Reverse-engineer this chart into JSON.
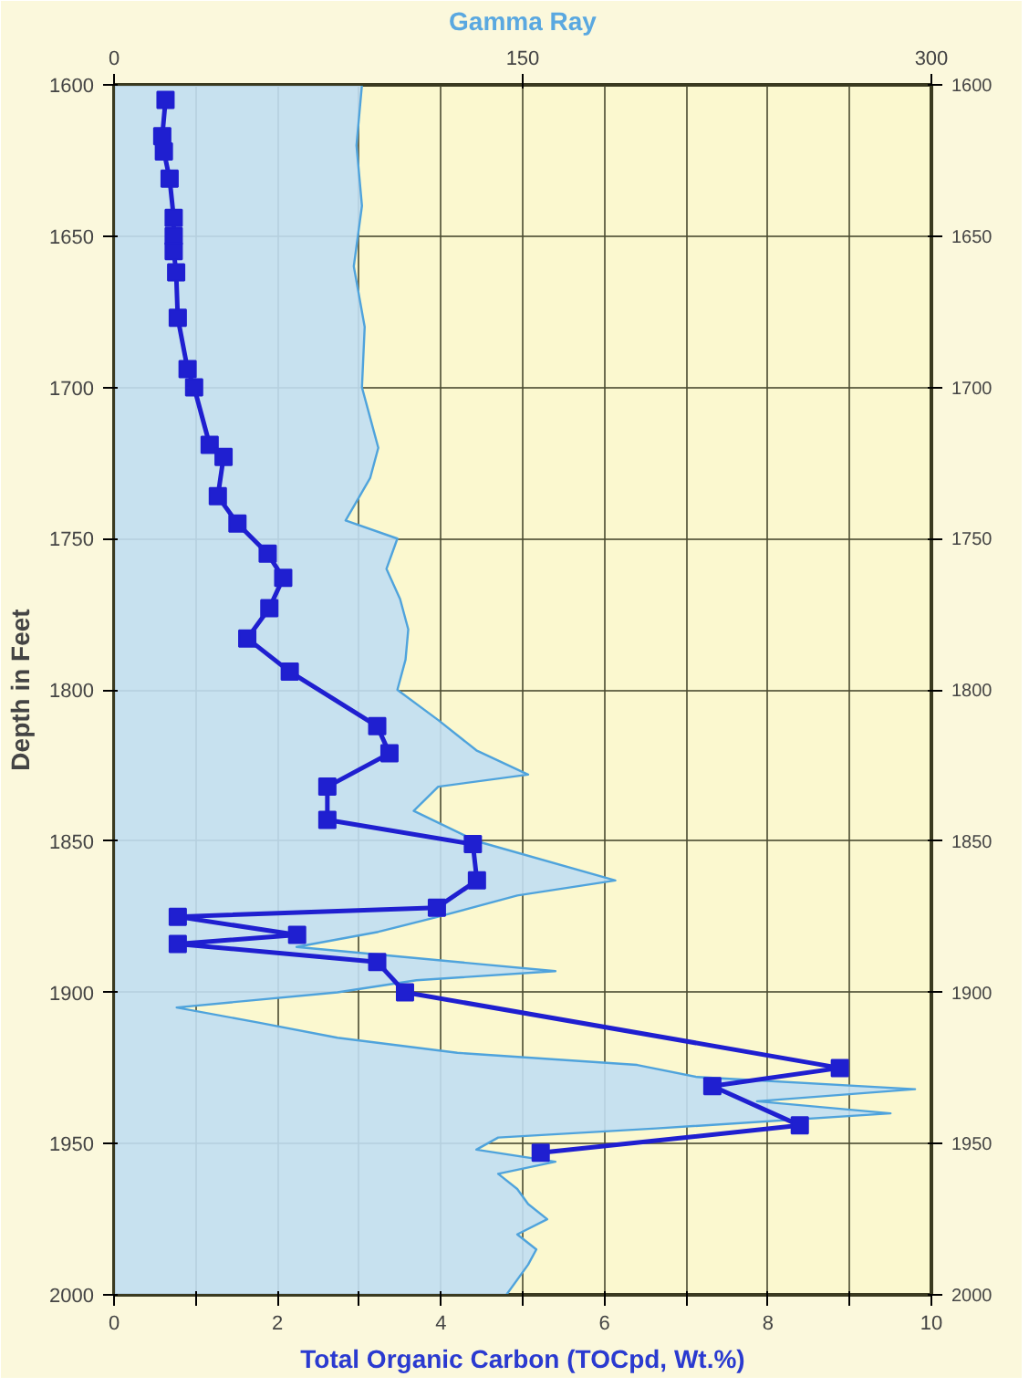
{
  "chart_data": {
    "type": "line",
    "xlabel": "Total Organic Carbon (TOCpd, Wt.%)",
    "x2label": "Gamma Ray",
    "ylabel": "Depth in Feet",
    "xlim": [
      0,
      10
    ],
    "xticks": [
      0,
      {
        "value": 1,
        "label": null
      },
      2,
      {
        "value": 3,
        "label": null
      },
      4,
      {
        "value": 5,
        "label": null
      },
      6,
      {
        "value": 7,
        "label": null
      },
      8,
      {
        "value": 9,
        "label": null
      },
      10
    ],
    "x2lim": [
      0,
      300
    ],
    "x2ticks": [
      0,
      150,
      300
    ],
    "ylim": [
      2000,
      1600
    ],
    "yticks": [
      1600,
      1650,
      1700,
      1750,
      1800,
      1850,
      1900,
      1950,
      2000
    ],
    "y2lim": [
      2000,
      1600
    ],
    "y2ticks": [
      1600,
      1650,
      1700,
      1750,
      1800,
      1850,
      1900,
      1950,
      2000
    ],
    "grid": true,
    "orientation": "horizontal",
    "series": [
      {
        "type": "area",
        "axis": "x2",
        "color": "#4fa3dc",
        "values": [
          91,
          89,
          91,
          88,
          92,
          91,
          94,
          97,
          94,
          85,
          104,
          100,
          105,
          108,
          107,
          104,
          119,
          133,
          152,
          119,
          110,
          133,
          184,
          148,
          119,
          97,
          67,
          162,
          111,
          82,
          23,
          53,
          82,
          126,
          192,
          214,
          294,
          236,
          285,
          199,
          141,
          133,
          162,
          141,
          148,
          152,
          159,
          148,
          155,
          152,
          144
        ],
        "x": [
          1600,
          1620,
          1640,
          1660,
          1680,
          1700,
          1710,
          1720,
          1730,
          1744,
          1750,
          1760,
          1770,
          1780,
          1790,
          1800,
          1810,
          1820,
          1828,
          1832,
          1840,
          1850,
          1863,
          1868,
          1875,
          1880,
          1885,
          1893,
          1896,
          1900,
          1905,
          1910,
          1915,
          1920,
          1924,
          1928,
          1932,
          1936,
          1940,
          1945,
          1948,
          1952,
          1956,
          1960,
          1965,
          1970,
          1975,
          1980,
          1985,
          1990,
          2000
        ]
      },
      {
        "color": "#1f1fd0",
        "marker": "square",
        "values": [
          0.63,
          0.59,
          0.61,
          0.68,
          0.73,
          0.73,
          0.73,
          0.76,
          0.78,
          0.9,
          0.98,
          1.17,
          1.34,
          1.27,
          1.51,
          1.88,
          2.07,
          1.9,
          1.63,
          2.15,
          3.22,
          3.37,
          2.61,
          2.61,
          4.39,
          4.44,
          3.95,
          0.78,
          2.24,
          0.78,
          3.22,
          3.56,
          8.88,
          7.32,
          8.39,
          5.22
        ],
        "x": [
          1605,
          1617,
          1622,
          1631,
          1644,
          1650,
          1655,
          1662,
          1677,
          1694,
          1700,
          1719,
          1723,
          1736,
          1745,
          1755,
          1763,
          1773,
          1783,
          1794,
          1812,
          1821,
          1832,
          1843,
          1851,
          1863,
          1872,
          1875,
          1881,
          1884,
          1890,
          1900,
          1925,
          1931,
          1944,
          1953
        ]
      }
    ]
  }
}
